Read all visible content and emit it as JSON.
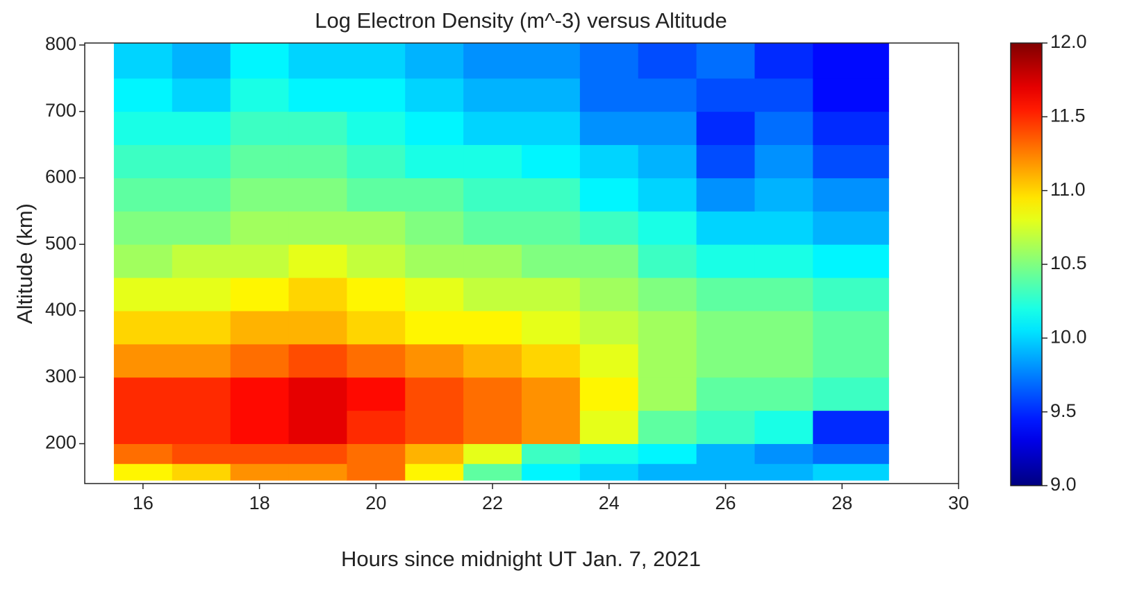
{
  "chart_data": {
    "type": "heatmap",
    "title": "Log Electron Density (m^-3) versus Altitude",
    "x_label": "Hours since midnight UT Jan. 7, 2021",
    "y_label": "Altitude (km)",
    "colormap": "jet",
    "xbins": [
      15.5,
      16.5,
      17.5,
      18.5,
      19.5,
      20.5,
      21.5,
      22.5,
      23.5,
      24.5,
      25.5,
      26.5,
      27.5,
      28.8
    ],
    "ybins": [
      145,
      170,
      200,
      250,
      300,
      350,
      400,
      450,
      500,
      550,
      600,
      650,
      700,
      750,
      803
    ],
    "values": [
      [
        10.9,
        11.0,
        11.2,
        11.2,
        11.3,
        10.9,
        10.4,
        10.1,
        10.0,
        9.9,
        9.9,
        9.9,
        10.0
      ],
      [
        11.3,
        11.4,
        11.4,
        11.4,
        11.3,
        11.1,
        10.8,
        10.3,
        10.2,
        10.1,
        9.9,
        9.8,
        9.7
      ],
      [
        11.5,
        11.5,
        11.6,
        11.7,
        11.5,
        11.4,
        11.3,
        11.2,
        10.8,
        10.4,
        10.3,
        10.2,
        9.5
      ],
      [
        11.5,
        11.5,
        11.6,
        11.7,
        11.6,
        11.4,
        11.3,
        11.2,
        10.9,
        10.6,
        10.4,
        10.4,
        10.3
      ],
      [
        11.2,
        11.2,
        11.3,
        11.4,
        11.3,
        11.2,
        11.1,
        11.0,
        10.8,
        10.6,
        10.5,
        10.5,
        10.4
      ],
      [
        11.0,
        11.0,
        11.1,
        11.1,
        11.0,
        10.9,
        10.9,
        10.8,
        10.7,
        10.6,
        10.5,
        10.5,
        10.4
      ],
      [
        10.8,
        10.8,
        10.9,
        11.0,
        10.9,
        10.8,
        10.7,
        10.7,
        10.6,
        10.5,
        10.4,
        10.4,
        10.3
      ],
      [
        10.6,
        10.7,
        10.7,
        10.8,
        10.7,
        10.6,
        10.6,
        10.5,
        10.5,
        10.3,
        10.2,
        10.2,
        10.1
      ],
      [
        10.5,
        10.5,
        10.6,
        10.6,
        10.6,
        10.5,
        10.4,
        10.4,
        10.3,
        10.2,
        10.0,
        10.0,
        9.9
      ],
      [
        10.4,
        10.4,
        10.5,
        10.5,
        10.4,
        10.4,
        10.3,
        10.3,
        10.1,
        10.0,
        9.8,
        9.9,
        9.8
      ],
      [
        10.3,
        10.3,
        10.4,
        10.4,
        10.3,
        10.2,
        10.2,
        10.1,
        10.0,
        9.9,
        9.6,
        9.8,
        9.6
      ],
      [
        10.2,
        10.2,
        10.3,
        10.3,
        10.2,
        10.1,
        10.0,
        10.0,
        9.8,
        9.8,
        9.5,
        9.7,
        9.5
      ],
      [
        10.1,
        10.0,
        10.2,
        10.1,
        10.1,
        10.0,
        9.9,
        9.9,
        9.7,
        9.7,
        9.6,
        9.6,
        9.4
      ],
      [
        10.0,
        9.9,
        10.1,
        10.0,
        10.0,
        9.9,
        9.8,
        9.8,
        9.7,
        9.6,
        9.7,
        9.5,
        9.4
      ]
    ],
    "xlim": [
      15,
      30
    ],
    "xticks": [
      16,
      18,
      20,
      22,
      24,
      26,
      28,
      30
    ],
    "ylim": [
      140,
      803
    ],
    "yticks": [
      200,
      300,
      400,
      500,
      600,
      700,
      800
    ],
    "clim": [
      9,
      12
    ],
    "cticks": [
      {
        "value": 9,
        "label": "9.0"
      },
      {
        "value": 9.5,
        "label": "9.5"
      },
      {
        "value": 10,
        "label": "10.0"
      },
      {
        "value": 10.5,
        "label": "10.5"
      },
      {
        "value": 11,
        "label": "11.0"
      },
      {
        "value": 11.5,
        "label": "11.5"
      },
      {
        "value": 12,
        "label": "12.0"
      }
    ]
  }
}
